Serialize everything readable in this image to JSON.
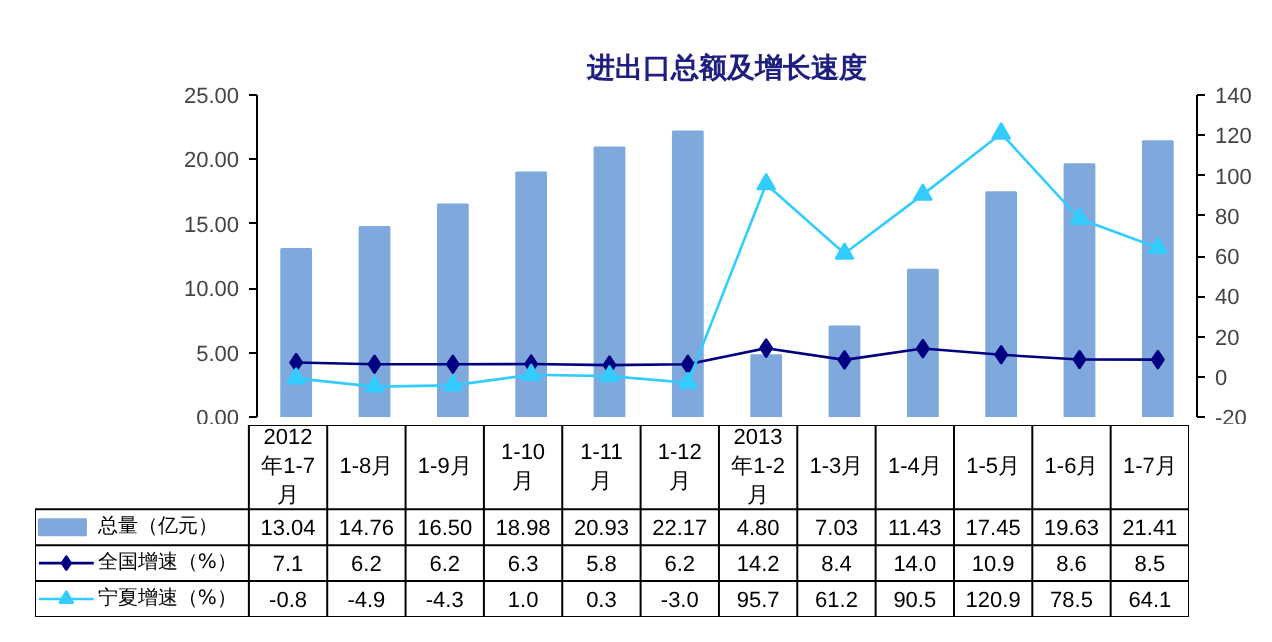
{
  "chart_data": {
    "type": "bar",
    "title": "进出口总额及增长速度",
    "categories": [
      "2012年1-7月",
      "1-8月",
      "1-9月",
      "1-10月",
      "1-11月",
      "1-12月",
      "2013年1-2月",
      "1-3月",
      "1-4月",
      "1-5月",
      "1-6月",
      "1-7月"
    ],
    "series": [
      {
        "name": "总量（亿元）",
        "color": "#7fa9dc",
        "values": [
          13.04,
          14.76,
          16.5,
          18.98,
          20.93,
          22.17,
          4.8,
          7.03,
          11.43,
          17.45,
          19.63,
          21.41
        ],
        "value_labels": [
          "13.04",
          "14.76",
          "16.50",
          "18.98",
          "20.93",
          "22.17",
          "4.80",
          "7.03",
          "11.43",
          "17.45",
          "19.63",
          "21.41"
        ]
      },
      {
        "name": "全国增速（%）",
        "type": "line",
        "axis": "y2",
        "marker": "diamond",
        "color": "#000080",
        "values": [
          7.1,
          6.2,
          6.2,
          6.3,
          5.8,
          6.2,
          14.2,
          8.4,
          14.0,
          10.9,
          8.6,
          8.5
        ],
        "value_labels": [
          "7.1",
          "6.2",
          "6.2",
          "6.3",
          "5.8",
          "6.2",
          "14.2",
          "8.4",
          "14.0",
          "10.9",
          "8.6",
          "8.5"
        ]
      },
      {
        "name": "宁夏增速（%）",
        "type": "line",
        "axis": "y2",
        "marker": "triangle",
        "color": "#33ccff",
        "values": [
          -0.8,
          -4.9,
          -4.3,
          1.0,
          0.3,
          -3.0,
          95.7,
          61.2,
          90.5,
          120.9,
          78.5,
          64.1
        ],
        "value_labels": [
          "-0.8",
          "-4.9",
          "-4.3",
          "1.0",
          "0.3",
          "-3.0",
          "95.7",
          "61.2",
          "90.5",
          "120.9",
          "78.5",
          "64.1"
        ]
      }
    ],
    "ylim": [
      0,
      25
    ],
    "yticks": [
      {
        "value": 0,
        "label": "0.00"
      },
      {
        "value": 5,
        "label": "5.00"
      },
      {
        "value": 10,
        "label": "10.00"
      },
      {
        "value": 15,
        "label": "15.00"
      },
      {
        "value": 20,
        "label": "20.00"
      },
      {
        "value": 25,
        "label": "25.00"
      }
    ],
    "y2lim": [
      -20,
      140
    ],
    "y2ticks": [
      -20,
      0,
      20,
      40,
      60,
      80,
      100,
      120,
      140
    ],
    "grid": false,
    "legend": "bottom"
  }
}
